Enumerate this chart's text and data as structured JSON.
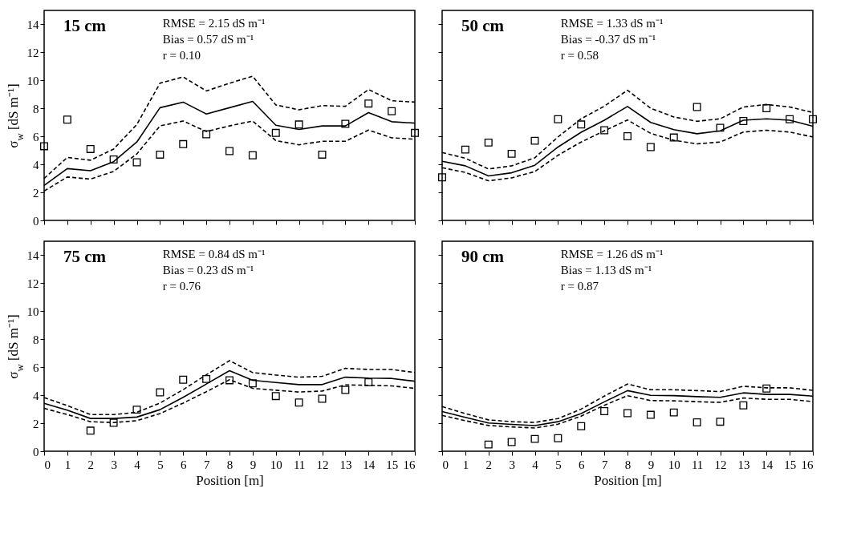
{
  "chart_data": [
    {
      "type": "line",
      "title": "15 cm",
      "annotations": [
        "RMSE = 2.15 dS m⁻¹",
        "Bias = 0.57 dS m⁻¹",
        "r = 0.10"
      ],
      "ylabel": "σ$_{w}$ [dS m⁻¹]",
      "x": [
        0,
        1,
        2,
        3,
        4,
        5,
        6,
        7,
        8,
        9,
        10,
        11,
        12,
        13,
        14,
        15,
        16
      ],
      "xlim": [
        0,
        16
      ],
      "xticks": [
        0,
        1,
        2,
        3,
        4,
        5,
        6,
        7,
        8,
        9,
        10,
        11,
        12,
        13,
        14,
        15,
        16
      ],
      "ylim": [
        0,
        15
      ],
      "yticks": [
        0,
        2,
        4,
        6,
        8,
        10,
        12,
        14
      ],
      "tick_labels": "y",
      "series": [
        {
          "type": "line",
          "line_style": "solid",
          "color": "#000000",
          "values": [
            2.5,
            3.7,
            3.55,
            4.2,
            5.6,
            8.05,
            8.45,
            7.6,
            8.05,
            8.5,
            6.8,
            6.5,
            6.75,
            6.75,
            7.7,
            7.05,
            6.95
          ]
        },
        {
          "type": "line",
          "line_style": "dashed",
          "color": "#000000",
          "values": [
            3.0,
            4.5,
            4.3,
            5.1,
            6.85,
            9.8,
            10.25,
            9.25,
            9.8,
            10.3,
            8.25,
            7.9,
            8.2,
            8.15,
            9.35,
            8.55,
            8.45
          ]
        },
        {
          "type": "line",
          "line_style": "dashed",
          "color": "#000000",
          "values": [
            2.1,
            3.1,
            2.95,
            3.5,
            4.75,
            6.75,
            7.1,
            6.35,
            6.75,
            7.1,
            5.7,
            5.4,
            5.65,
            5.65,
            6.45,
            5.9,
            5.8
          ]
        },
        {
          "type": "scatter",
          "marker": "square",
          "color": "#000000",
          "values": [
            5.3,
            7.2,
            5.1,
            4.35,
            4.15,
            4.7,
            5.45,
            6.15,
            4.95,
            4.65,
            6.25,
            6.85,
            4.7,
            6.9,
            8.35,
            7.8,
            6.25
          ]
        }
      ]
    },
    {
      "type": "line",
      "title": "50 cm",
      "annotations": [
        "RMSE = 1.33 dS m⁻¹",
        "Bias = -0.37 dS m⁻¹",
        "r = 0.58"
      ],
      "x": [
        0,
        1,
        2,
        3,
        4,
        5,
        6,
        7,
        8,
        9,
        10,
        11,
        12,
        13,
        14,
        15,
        16
      ],
      "xlim": [
        0,
        16
      ],
      "xticks": [
        0,
        1,
        2,
        3,
        4,
        5,
        6,
        7,
        8,
        9,
        10,
        11,
        12,
        13,
        14,
        15,
        16
      ],
      "ylim": [
        0,
        15
      ],
      "yticks": [
        0,
        2,
        4,
        6,
        8,
        10,
        12,
        14
      ],
      "tick_labels": false,
      "series": [
        {
          "type": "line",
          "line_style": "solid",
          "color": "#000000",
          "values": [
            4.22,
            3.9,
            3.18,
            3.4,
            3.94,
            5.24,
            6.3,
            7.16,
            8.14,
            7.0,
            6.48,
            6.19,
            6.4,
            7.16,
            7.26,
            7.16,
            6.73
          ]
        },
        {
          "type": "line",
          "line_style": "dashed",
          "color": "#000000",
          "values": [
            4.85,
            4.44,
            3.67,
            3.9,
            4.47,
            5.96,
            7.26,
            8.16,
            9.3,
            8.01,
            7.39,
            7.08,
            7.26,
            8.1,
            8.28,
            8.1,
            7.71
          ]
        },
        {
          "type": "line",
          "line_style": "dashed",
          "color": "#000000",
          "values": [
            3.76,
            3.43,
            2.83,
            3.04,
            3.49,
            4.65,
            5.6,
            6.4,
            7.17,
            6.22,
            5.72,
            5.47,
            5.6,
            6.31,
            6.44,
            6.31,
            5.96
          ]
        },
        {
          "type": "scatter",
          "marker": "square",
          "color": "#000000",
          "values": [
            3.08,
            5.06,
            5.56,
            4.76,
            5.69,
            7.23,
            6.85,
            6.44,
            6.01,
            5.24,
            5.92,
            8.1,
            6.62,
            7.1,
            8.01,
            7.23,
            7.23
          ]
        }
      ]
    },
    {
      "type": "line",
      "title": "75 cm",
      "annotations": [
        "RMSE = 0.84 dS m⁻¹",
        "Bias = 0.23 dS m⁻¹",
        "r = 0.76"
      ],
      "xlabel": "Position [m]",
      "ylabel": "σ$_{w}$ [dS m⁻¹]",
      "x": [
        0,
        1,
        2,
        3,
        4,
        5,
        6,
        7,
        8,
        9,
        10,
        11,
        12,
        13,
        14,
        15,
        16
      ],
      "xlim": [
        0,
        16
      ],
      "xticks": [
        0,
        1,
        2,
        3,
        4,
        5,
        6,
        7,
        8,
        9,
        10,
        11,
        12,
        13,
        14,
        15,
        16
      ],
      "ylim": [
        0,
        15
      ],
      "yticks": [
        0,
        2,
        4,
        6,
        8,
        10,
        12,
        14
      ],
      "series": [
        {
          "type": "line",
          "line_style": "solid",
          "color": "#000000",
          "values": [
            3.42,
            2.93,
            2.34,
            2.34,
            2.44,
            2.97,
            3.85,
            4.8,
            5.75,
            5.07,
            4.91,
            4.76,
            4.76,
            5.29,
            5.22,
            5.2,
            5.0
          ]
        },
        {
          "type": "line",
          "line_style": "dashed",
          "color": "#000000",
          "values": [
            3.83,
            3.26,
            2.62,
            2.62,
            2.78,
            3.44,
            4.4,
            5.46,
            6.47,
            5.62,
            5.44,
            5.29,
            5.35,
            5.92,
            5.84,
            5.84,
            5.62
          ]
        },
        {
          "type": "line",
          "line_style": "dashed",
          "color": "#000000",
          "values": [
            3.06,
            2.62,
            2.11,
            2.05,
            2.18,
            2.69,
            3.44,
            4.25,
            5.11,
            4.49,
            4.36,
            4.23,
            4.3,
            4.74,
            4.71,
            4.67,
            4.49
          ]
        },
        {
          "type": "scatter",
          "marker": "square",
          "color": "#000000",
          "values": [
            null,
            null,
            1.47,
            2.03,
            2.97,
            4.21,
            5.11,
            5.16,
            5.07,
            4.85,
            3.94,
            3.48,
            3.75,
            4.38,
            4.93,
            null,
            null
          ]
        }
      ]
    },
    {
      "type": "line",
      "title": "90 cm",
      "annotations": [
        "RMSE = 1.26 dS m⁻¹",
        "Bias = 1.13 dS m⁻¹",
        "r = 0.87"
      ],
      "xlabel": "Position [m]",
      "x": [
        0,
        1,
        2,
        3,
        4,
        5,
        6,
        7,
        8,
        9,
        10,
        11,
        12,
        13,
        14,
        15,
        16
      ],
      "xlim": [
        0,
        16
      ],
      "xticks": [
        0,
        1,
        2,
        3,
        4,
        5,
        6,
        7,
        8,
        9,
        10,
        11,
        12,
        13,
        14,
        15,
        16
      ],
      "ylim": [
        0,
        15
      ],
      "yticks": [
        0,
        2,
        4,
        6,
        8,
        10,
        12,
        14
      ],
      "tick_labels": "x",
      "series": [
        {
          "type": "line",
          "line_style": "solid",
          "color": "#000000",
          "values": [
            2.83,
            2.42,
            2.02,
            1.92,
            1.83,
            2.11,
            2.69,
            3.53,
            4.33,
            3.99,
            3.97,
            3.9,
            3.85,
            4.17,
            4.06,
            4.06,
            3.94
          ]
        },
        {
          "type": "line",
          "line_style": "dashed",
          "color": "#000000",
          "values": [
            3.19,
            2.69,
            2.24,
            2.11,
            2.06,
            2.33,
            3.01,
            3.94,
            4.8,
            4.39,
            4.39,
            4.33,
            4.26,
            4.64,
            4.53,
            4.53,
            4.35
          ]
        },
        {
          "type": "line",
          "line_style": "dashed",
          "color": "#000000",
          "values": [
            2.56,
            2.18,
            1.84,
            1.74,
            1.66,
            1.93,
            2.51,
            3.28,
            3.97,
            3.62,
            3.6,
            3.54,
            3.49,
            3.8,
            3.71,
            3.71,
            3.54
          ]
        },
        {
          "type": "scatter",
          "marker": "square",
          "color": "#000000",
          "values": [
            null,
            null,
            0.48,
            0.66,
            0.88,
            0.93,
            1.79,
            2.86,
            2.72,
            2.6,
            2.77,
            2.06,
            2.11,
            3.28,
            4.48,
            null,
            null
          ]
        }
      ]
    }
  ]
}
